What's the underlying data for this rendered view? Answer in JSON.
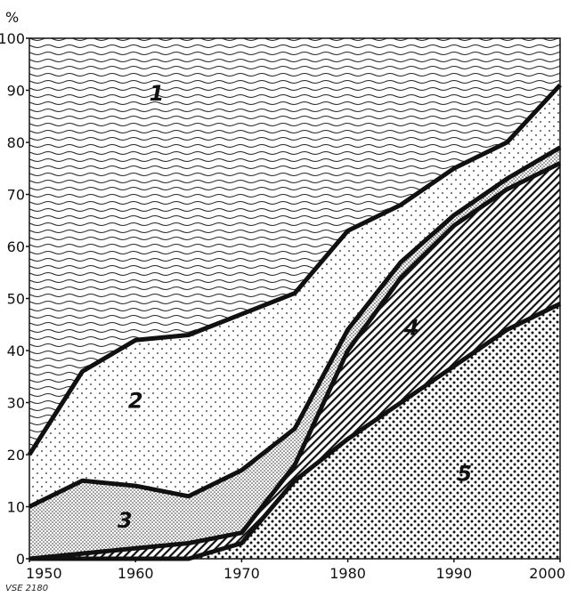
{
  "chart_data": {
    "type": "area",
    "subtype": "stacked-cumulative-percent",
    "title": "",
    "xlabel": "",
    "ylabel": "%",
    "xlim": [
      1950,
      2000
    ],
    "ylim": [
      0,
      100
    ],
    "x_ticks": [
      "1950",
      "1960",
      "1970",
      "1980",
      "1990",
      "2000"
    ],
    "y_ticks": [
      "0",
      "10",
      "20",
      "30",
      "40",
      "50",
      "60",
      "70",
      "80",
      "90",
      "100"
    ],
    "grid": false,
    "legend": "none (regions labelled by number inside the plot)",
    "caption": "VSE 2180",
    "x": [
      1950,
      1955,
      1960,
      1965,
      1970,
      1975,
      1980,
      1985,
      1990,
      1995,
      2000
    ],
    "boundaries": [
      {
        "name": "5",
        "values": [
          0,
          0,
          0,
          0,
          3,
          15,
          23,
          30,
          37,
          44,
          49
        ]
      },
      {
        "name": "4",
        "values": [
          0,
          1,
          2,
          3,
          5,
          18,
          40,
          54,
          64,
          71,
          76
        ]
      },
      {
        "name": "3",
        "values": [
          10,
          15,
          14,
          12,
          17,
          25,
          44,
          57,
          66,
          73,
          79
        ]
      },
      {
        "name": "2",
        "values": [
          20,
          36,
          42,
          43,
          47,
          51,
          63,
          68,
          75,
          80,
          91
        ]
      },
      {
        "name": "1",
        "values": [
          100,
          100,
          100,
          100,
          100,
          100,
          100,
          100,
          100,
          100,
          100
        ]
      }
    ],
    "regions": [
      {
        "label": "1",
        "pattern": "wavy-lines",
        "label_x": 1962,
        "label_y": 88
      },
      {
        "label": "2",
        "pattern": "sparse-dots",
        "label_x": 1960,
        "label_y": 29
      },
      {
        "label": "3",
        "pattern": "fine-stipple",
        "label_x": 1959,
        "label_y": 6
      },
      {
        "label": "4",
        "pattern": "diagonal-hatch",
        "label_x": 1986,
        "label_y": 43
      },
      {
        "label": "5",
        "pattern": "dense-dots",
        "label_x": 1991,
        "label_y": 15
      }
    ]
  }
}
